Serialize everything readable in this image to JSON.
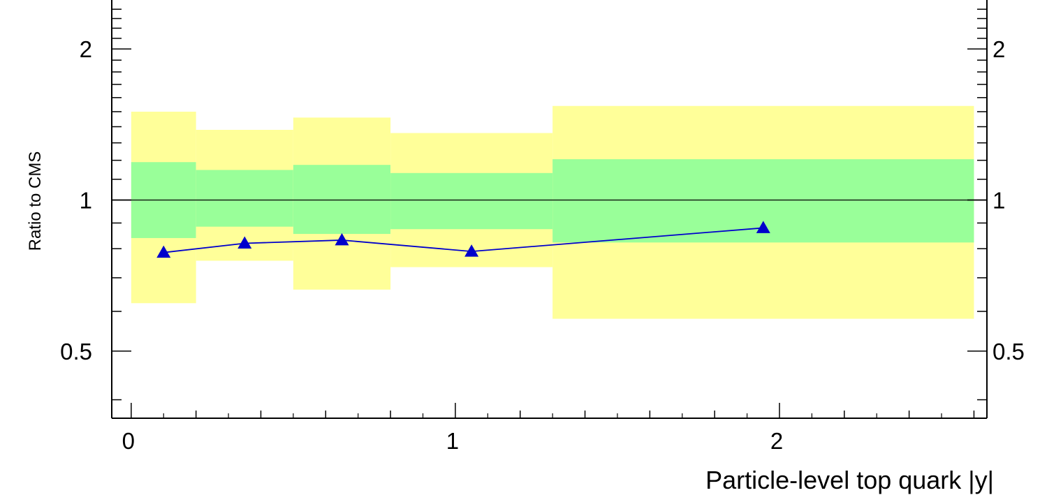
{
  "chart_data": {
    "type": "line",
    "xlabel": "Particle-level top quark |y|",
    "ylabel": "Ratio to CMS",
    "xlim": [
      -0.06,
      2.64
    ],
    "ylim": [
      0.3675,
      2.52
    ],
    "log_y": true,
    "x_ticks": [
      {
        "value": 0,
        "label": "0"
      },
      {
        "value": 1,
        "label": "1"
      },
      {
        "value": 2,
        "label": "2"
      }
    ],
    "y_ticks": [
      {
        "value": 0.5,
        "label": "0.5"
      },
      {
        "value": 1,
        "label": "1"
      },
      {
        "value": 2,
        "label": "2"
      }
    ],
    "reference_line": 1,
    "grid": false,
    "bins": [
      {
        "x_low": 0.0,
        "x_high": 0.2,
        "inner": [
          0.84,
          1.19
        ],
        "outer": [
          0.623,
          1.5
        ]
      },
      {
        "x_low": 0.2,
        "x_high": 0.5,
        "inner": [
          0.885,
          1.148
        ],
        "outer": [
          0.757,
          1.38
        ]
      },
      {
        "x_low": 0.5,
        "x_high": 0.8,
        "inner": [
          0.856,
          1.175
        ],
        "outer": [
          0.663,
          1.46
        ]
      },
      {
        "x_low": 0.8,
        "x_high": 1.3,
        "inner": [
          0.875,
          1.132
        ],
        "outer": [
          0.735,
          1.36
        ]
      },
      {
        "x_low": 1.3,
        "x_high": 2.6,
        "inner": [
          0.823,
          1.206
        ],
        "outer": [
          0.58,
          1.54
        ]
      }
    ],
    "band_colors": {
      "inner": "#99ff99",
      "outer": "#ffff99"
    },
    "series": [
      {
        "x": [
          0.1,
          0.35,
          0.65,
          1.05,
          1.95
        ],
        "values": [
          0.786,
          0.82,
          0.832,
          0.79,
          0.88
        ],
        "color": "#0000cc",
        "marker": "triangle-up"
      }
    ]
  }
}
